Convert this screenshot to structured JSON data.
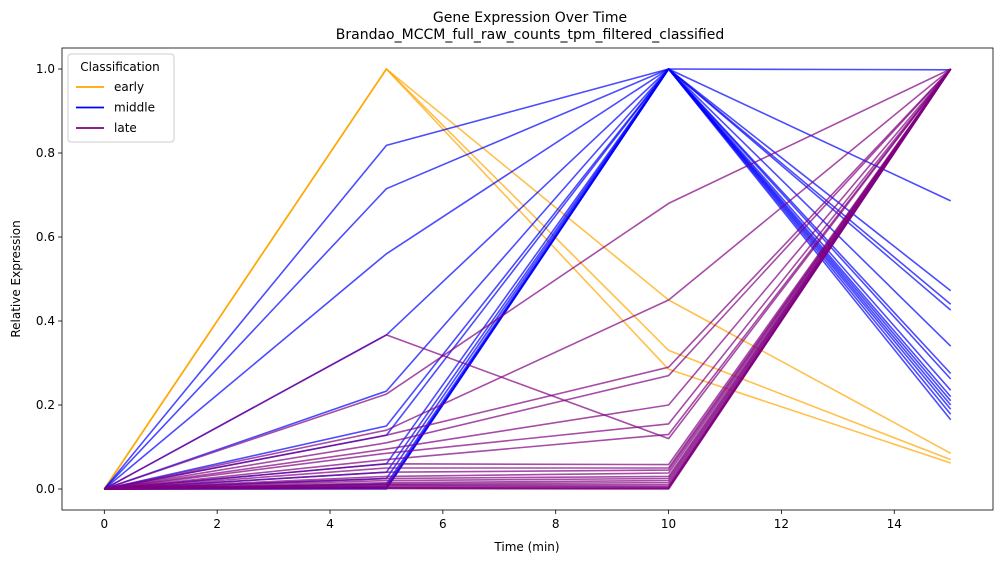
{
  "chart_data": {
    "type": "line",
    "title": "Gene Expression Over Time",
    "subtitle": "Brandao_MCCM_full_raw_counts_tpm_filtered_classified",
    "xlabel": "Time (min)",
    "ylabel": "Relative Expression",
    "x": [
      0,
      5,
      10,
      15
    ],
    "xlim": [
      -0.75,
      15.75
    ],
    "ylim": [
      -0.05,
      1.05
    ],
    "xticks": [
      0,
      2,
      4,
      6,
      8,
      10,
      12,
      14
    ],
    "yticks": [
      0.0,
      0.2,
      0.4,
      0.6,
      0.8,
      1.0
    ],
    "grid": false,
    "legend": {
      "title": "Classification",
      "placement": "top-left",
      "entries": [
        {
          "label": "early",
          "color": "#ffa500"
        },
        {
          "label": "middle",
          "color": "#0000ff"
        },
        {
          "label": "late",
          "color": "#800080"
        }
      ]
    },
    "series": [
      {
        "class": "early",
        "color": "#ffa500",
        "values": [
          0,
          1.0,
          0.45,
          0.085
        ]
      },
      {
        "class": "early",
        "color": "#ffa500",
        "values": [
          0,
          1.0,
          0.33,
          0.07
        ]
      },
      {
        "class": "early",
        "color": "#ffa500",
        "values": [
          0,
          1.0,
          0.285,
          0.062
        ]
      },
      {
        "class": "middle",
        "color": "#0000ff",
        "values": [
          0,
          0.818,
          1.0,
          0.686
        ]
      },
      {
        "class": "middle",
        "color": "#0000ff",
        "values": [
          0,
          0.715,
          1.0,
          0.472
        ]
      },
      {
        "class": "middle",
        "color": "#0000ff",
        "values": [
          0,
          0.56,
          1.0,
          0.44
        ]
      },
      {
        "class": "middle",
        "color": "#0000ff",
        "values": [
          0,
          0.367,
          1.0,
          0.426
        ]
      },
      {
        "class": "middle",
        "color": "#0000ff",
        "values": [
          0,
          0.233,
          1.0,
          0.34
        ]
      },
      {
        "class": "middle",
        "color": "#0000ff",
        "values": [
          0,
          0.15,
          1.0,
          0.275
        ]
      },
      {
        "class": "middle",
        "color": "#0000ff",
        "values": [
          0,
          0.128,
          1.0,
          0.262
        ]
      },
      {
        "class": "middle",
        "color": "#0000ff",
        "values": [
          0,
          0.06,
          1.0,
          0.998
        ]
      },
      {
        "class": "middle",
        "color": "#0000ff",
        "values": [
          0,
          0.04,
          1.0,
          0.235
        ]
      },
      {
        "class": "middle",
        "color": "#0000ff",
        "values": [
          0,
          0.025,
          1.0,
          0.22
        ]
      },
      {
        "class": "middle",
        "color": "#0000ff",
        "values": [
          0,
          0.012,
          1.0,
          0.21
        ]
      },
      {
        "class": "middle",
        "color": "#0000ff",
        "values": [
          0,
          0.006,
          1.0,
          0.2
        ]
      },
      {
        "class": "middle",
        "color": "#0000ff",
        "values": [
          0,
          0.003,
          1.0,
          0.19
        ]
      },
      {
        "class": "middle",
        "color": "#0000ff",
        "values": [
          0,
          0.001,
          1.0,
          0.178
        ]
      },
      {
        "class": "middle",
        "color": "#0000ff",
        "values": [
          0,
          0.0,
          1.0,
          0.165
        ]
      },
      {
        "class": "late",
        "color": "#800080",
        "values": [
          0,
          0.367,
          0.12,
          1.0
        ]
      },
      {
        "class": "late",
        "color": "#800080",
        "values": [
          0,
          0.226,
          0.68,
          1.0
        ]
      },
      {
        "class": "late",
        "color": "#800080",
        "values": [
          0,
          0.14,
          0.45,
          1.0
        ]
      },
      {
        "class": "late",
        "color": "#800080",
        "values": [
          0,
          0.128,
          0.29,
          1.0
        ]
      },
      {
        "class": "late",
        "color": "#800080",
        "values": [
          0,
          0.11,
          0.27,
          1.0
        ]
      },
      {
        "class": "late",
        "color": "#800080",
        "values": [
          0,
          0.095,
          0.2,
          1.0
        ]
      },
      {
        "class": "late",
        "color": "#800080",
        "values": [
          0,
          0.085,
          0.155,
          1.0
        ]
      },
      {
        "class": "late",
        "color": "#800080",
        "values": [
          0,
          0.07,
          0.13,
          1.0
        ]
      },
      {
        "class": "late",
        "color": "#800080",
        "values": [
          0,
          0.06,
          0.058,
          1.0
        ]
      },
      {
        "class": "late",
        "color": "#800080",
        "values": [
          0,
          0.05,
          0.05,
          1.0
        ]
      },
      {
        "class": "late",
        "color": "#800080",
        "values": [
          0,
          0.04,
          0.045,
          1.0
        ]
      },
      {
        "class": "late",
        "color": "#800080",
        "values": [
          0,
          0.03,
          0.038,
          1.0
        ]
      },
      {
        "class": "late",
        "color": "#800080",
        "values": [
          0,
          0.025,
          0.03,
          1.0
        ]
      },
      {
        "class": "late",
        "color": "#800080",
        "values": [
          0,
          0.02,
          0.025,
          1.0
        ]
      },
      {
        "class": "late",
        "color": "#800080",
        "values": [
          0,
          0.015,
          0.02,
          1.0
        ]
      },
      {
        "class": "late",
        "color": "#800080",
        "values": [
          0,
          0.012,
          0.015,
          1.0
        ]
      },
      {
        "class": "late",
        "color": "#800080",
        "values": [
          0,
          0.01,
          0.01,
          1.0
        ]
      },
      {
        "class": "late",
        "color": "#800080",
        "values": [
          0,
          0.008,
          0.006,
          1.0
        ]
      },
      {
        "class": "late",
        "color": "#800080",
        "values": [
          0,
          0.005,
          0.004,
          1.0
        ]
      },
      {
        "class": "late",
        "color": "#800080",
        "values": [
          0,
          0.003,
          0.002,
          1.0
        ]
      },
      {
        "class": "late",
        "color": "#800080",
        "values": [
          0,
          0.002,
          0.001,
          1.0
        ]
      },
      {
        "class": "late",
        "color": "#800080",
        "values": [
          0,
          0.001,
          0.0,
          1.0
        ]
      }
    ]
  }
}
